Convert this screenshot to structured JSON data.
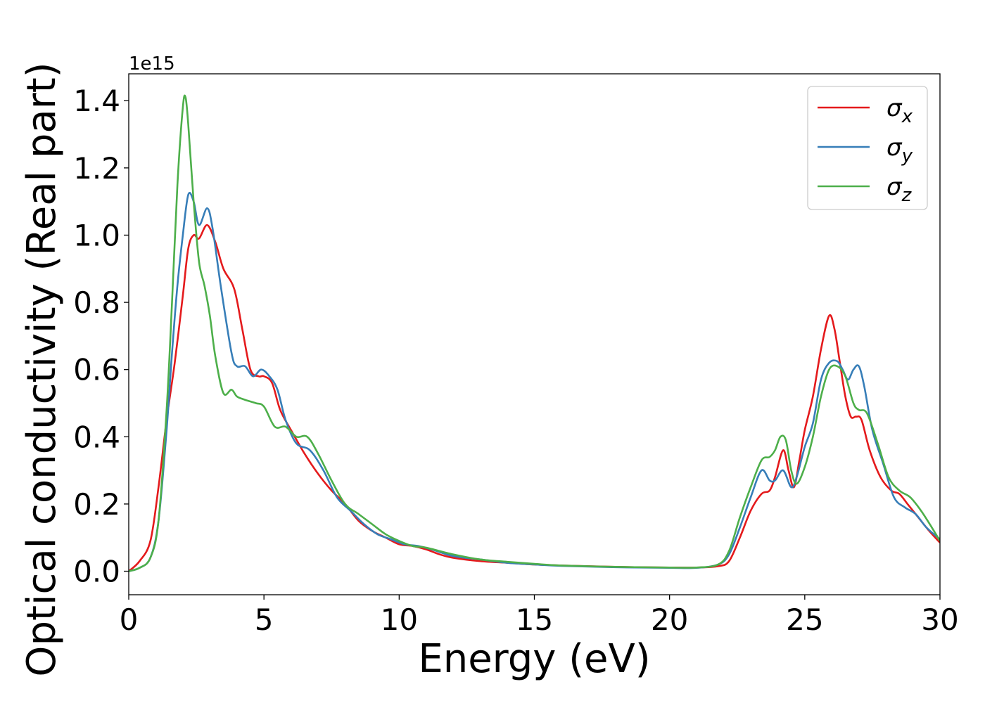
{
  "chart_data": {
    "type": "line",
    "title": "",
    "xlabel": "Energy (eV)",
    "ylabel": "Optical conductivity (Real part)",
    "y_scale_label": "1e15",
    "xlim": [
      0,
      30
    ],
    "ylim": [
      -0.07,
      1.48
    ],
    "x_ticks": [
      0,
      5,
      10,
      15,
      20,
      25,
      30
    ],
    "y_ticks": [
      0.0,
      0.2,
      0.4,
      0.6,
      0.8,
      1.0,
      1.2,
      1.4
    ],
    "grid": false,
    "legend_position": "top-right",
    "series": [
      {
        "name": "σ_x",
        "legend_symbol": "σ",
        "legend_subscript": "x",
        "color": "#e41a1c",
        "x": [
          0,
          0.4,
          0.8,
          1.1,
          1.4,
          1.7,
          2.0,
          2.2,
          2.4,
          2.6,
          2.9,
          3.2,
          3.5,
          3.9,
          4.2,
          4.5,
          4.8,
          5.0,
          5.3,
          5.6,
          6.0,
          6.5,
          7.0,
          7.5,
          8.0,
          8.5,
          9.0,
          9.5,
          10.0,
          10.5,
          11.0,
          11.5,
          12.0,
          13.0,
          14.0,
          15.0,
          16.0,
          18.0,
          20.0,
          21.0,
          21.8,
          22.2,
          22.6,
          23.0,
          23.4,
          23.7,
          23.9,
          24.2,
          24.4,
          24.6,
          24.8,
          25.0,
          25.3,
          25.6,
          25.9,
          26.1,
          26.3,
          26.5,
          26.7,
          26.9,
          27.1,
          27.4,
          27.8,
          28.2,
          28.5,
          28.8,
          29.2,
          29.6,
          30.0
        ],
        "y": [
          0.0,
          0.03,
          0.09,
          0.25,
          0.45,
          0.62,
          0.82,
          0.96,
          1.0,
          0.99,
          1.03,
          0.98,
          0.9,
          0.84,
          0.72,
          0.6,
          0.58,
          0.58,
          0.56,
          0.48,
          0.42,
          0.35,
          0.29,
          0.24,
          0.2,
          0.15,
          0.12,
          0.1,
          0.08,
          0.075,
          0.065,
          0.05,
          0.04,
          0.03,
          0.025,
          0.02,
          0.017,
          0.013,
          0.011,
          0.011,
          0.015,
          0.03,
          0.1,
          0.18,
          0.23,
          0.24,
          0.28,
          0.36,
          0.3,
          0.25,
          0.33,
          0.42,
          0.52,
          0.66,
          0.76,
          0.72,
          0.62,
          0.52,
          0.46,
          0.46,
          0.45,
          0.36,
          0.28,
          0.24,
          0.23,
          0.2,
          0.16,
          0.12,
          0.085
        ]
      },
      {
        "name": "σ_y",
        "legend_symbol": "σ",
        "legend_subscript": "y",
        "color": "#377eb8",
        "x": [
          0,
          0.4,
          0.8,
          1.1,
          1.4,
          1.6,
          1.8,
          2.0,
          2.2,
          2.4,
          2.6,
          2.9,
          3.1,
          3.4,
          3.8,
          4.0,
          4.3,
          4.6,
          4.9,
          5.2,
          5.5,
          5.8,
          6.2,
          6.7,
          7.2,
          7.7,
          8.2,
          8.7,
          9.2,
          9.7,
          10.2,
          10.7,
          11.2,
          12.0,
          13.0,
          14.0,
          15.0,
          16.0,
          18.0,
          20.0,
          21.0,
          21.8,
          22.2,
          22.6,
          23.0,
          23.4,
          23.7,
          23.9,
          24.2,
          24.5,
          24.7,
          25.0,
          25.3,
          25.6,
          25.9,
          26.2,
          26.4,
          26.6,
          26.8,
          27.0,
          27.2,
          27.5,
          27.9,
          28.3,
          28.7,
          29.1,
          29.5,
          30.0
        ],
        "y": [
          0.0,
          0.01,
          0.04,
          0.15,
          0.42,
          0.65,
          0.85,
          1.0,
          1.12,
          1.1,
          1.03,
          1.08,
          1.02,
          0.85,
          0.65,
          0.61,
          0.61,
          0.58,
          0.6,
          0.58,
          0.54,
          0.45,
          0.38,
          0.36,
          0.3,
          0.22,
          0.18,
          0.14,
          0.11,
          0.095,
          0.08,
          0.075,
          0.065,
          0.045,
          0.035,
          0.025,
          0.02,
          0.016,
          0.012,
          0.01,
          0.01,
          0.02,
          0.05,
          0.13,
          0.22,
          0.3,
          0.27,
          0.27,
          0.3,
          0.25,
          0.28,
          0.37,
          0.44,
          0.57,
          0.62,
          0.625,
          0.6,
          0.57,
          0.6,
          0.61,
          0.55,
          0.42,
          0.32,
          0.22,
          0.19,
          0.17,
          0.13,
          0.095
        ]
      },
      {
        "name": "σ_z",
        "legend_symbol": "σ",
        "legend_subscript": "z",
        "color": "#4daf4a",
        "x": [
          0,
          0.4,
          0.8,
          1.1,
          1.4,
          1.6,
          1.8,
          2.0,
          2.1,
          2.2,
          2.4,
          2.6,
          2.8,
          3.0,
          3.2,
          3.5,
          3.8,
          4.0,
          4.3,
          4.7,
          5.0,
          5.4,
          5.8,
          6.2,
          6.6,
          7.0,
          7.5,
          8.0,
          8.5,
          9.0,
          9.5,
          10.0,
          10.5,
          11.0,
          12.0,
          13.0,
          14.0,
          15.0,
          16.0,
          18.0,
          20.0,
          21.0,
          21.8,
          22.2,
          22.6,
          23.0,
          23.4,
          23.7,
          23.9,
          24.1,
          24.3,
          24.5,
          24.7,
          25.0,
          25.3,
          25.6,
          25.9,
          26.2,
          26.5,
          26.8,
          27.0,
          27.3,
          27.7,
          28.1,
          28.5,
          28.9,
          29.3,
          29.7,
          30.0
        ],
        "y": [
          0.0,
          0.01,
          0.04,
          0.15,
          0.48,
          0.8,
          1.15,
          1.38,
          1.41,
          1.33,
          1.1,
          0.92,
          0.85,
          0.76,
          0.64,
          0.53,
          0.54,
          0.52,
          0.51,
          0.5,
          0.49,
          0.43,
          0.43,
          0.4,
          0.4,
          0.35,
          0.27,
          0.2,
          0.17,
          0.14,
          0.11,
          0.09,
          0.075,
          0.07,
          0.05,
          0.035,
          0.028,
          0.022,
          0.017,
          0.013,
          0.011,
          0.011,
          0.02,
          0.06,
          0.16,
          0.25,
          0.33,
          0.34,
          0.36,
          0.4,
          0.39,
          0.3,
          0.26,
          0.31,
          0.4,
          0.52,
          0.6,
          0.61,
          0.58,
          0.5,
          0.48,
          0.47,
          0.38,
          0.28,
          0.24,
          0.22,
          0.18,
          0.13,
          0.09
        ]
      }
    ]
  }
}
